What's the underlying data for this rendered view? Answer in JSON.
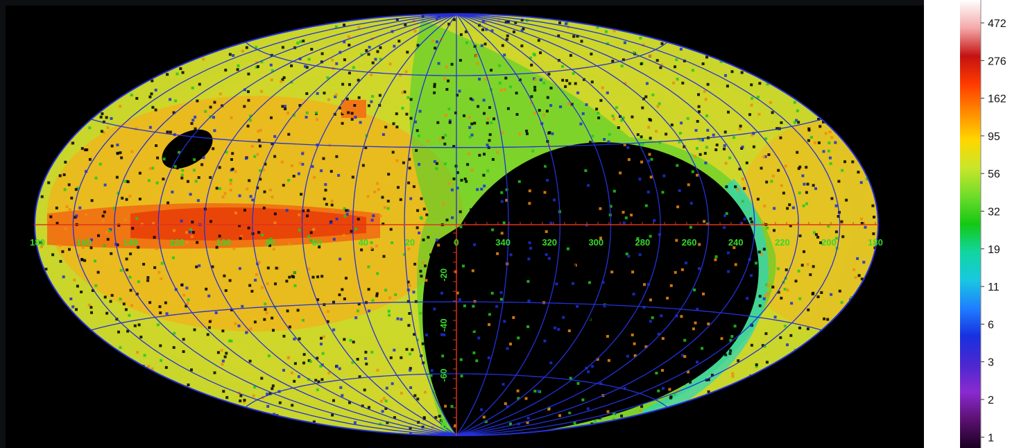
{
  "map": {
    "projection": "aitoff-hammer",
    "background": "#000000",
    "grid_color": "#2430d8",
    "axis_color": "#e0331c",
    "label_color": "#35d82b",
    "longitude_labels": [
      "180",
      "160",
      "140",
      "120",
      "100",
      "80",
      "60",
      "40",
      "20",
      "0",
      "340",
      "320",
      "300",
      "280",
      "260",
      "240",
      "220",
      "200",
      "180"
    ],
    "latitude_labels": [
      "-20",
      "-40",
      "-60",
      "-80"
    ]
  },
  "colorbar": {
    "tick_labels": [
      "472",
      "276",
      "162",
      "95",
      "56",
      "32",
      "19",
      "11",
      "6",
      "3",
      "2",
      "1"
    ],
    "gradient_colors": [
      "#ffffff",
      "#f4a8a8",
      "#c41212",
      "#ff3b00",
      "#ff8a00",
      "#ffd700",
      "#c8e62a",
      "#6fdc2a",
      "#14c814",
      "#10d6a0",
      "#18c8e0",
      "#1e7fff",
      "#1830e0",
      "#4a28d0",
      "#8a2ad0",
      "#5a1070",
      "#1a0020"
    ]
  }
}
